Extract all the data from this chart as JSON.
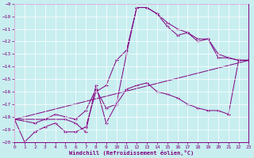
{
  "xlabel": "Windchill (Refroidissement éolien,°C)",
  "bg_color": "#c8eef0",
  "grid_color": "#ffffff",
  "line_color": "#800080",
  "xmin": 0,
  "xmax": 23,
  "ymin": -20,
  "ymax": -9,
  "curve1_x": [
    0,
    1,
    2,
    3,
    4,
    5,
    6,
    7,
    8,
    9,
    10,
    11,
    12,
    13,
    14,
    15,
    16,
    17,
    18,
    19,
    20,
    21,
    22,
    23
  ],
  "curve1_y": [
    -18.2,
    -20.0,
    -19.2,
    -18.8,
    -18.5,
    -19.2,
    -19.2,
    -18.8,
    -16.0,
    -15.5,
    -13.5,
    -12.7,
    -9.3,
    -9.3,
    -9.8,
    -10.5,
    -11.0,
    -11.3,
    -11.8,
    -11.8,
    -13.3,
    -13.3,
    -13.5,
    -13.5
  ],
  "curve2_x": [
    0,
    2,
    3,
    4,
    5,
    6,
    7,
    8,
    9,
    10,
    11,
    12,
    13,
    14,
    15,
    16,
    17,
    18,
    19,
    20,
    21,
    22,
    23
  ],
  "curve2_y": [
    -18.2,
    -18.5,
    -18.2,
    -17.8,
    -18.0,
    -18.2,
    -17.5,
    -15.8,
    -17.3,
    -17.0,
    -15.8,
    -15.5,
    -15.3,
    -16.0,
    -16.2,
    -16.5,
    -17.0,
    -17.3,
    -17.5,
    -17.5,
    -17.8,
    -13.5,
    -13.5
  ],
  "curve3_x": [
    0,
    23
  ],
  "curve3_y": [
    -18.2,
    -13.5
  ],
  "curve4_x": [
    0,
    5,
    6,
    7,
    8,
    9,
    10,
    11,
    12,
    13,
    14,
    15,
    16,
    17,
    18,
    19,
    20,
    21,
    22,
    23
  ],
  "curve4_y": [
    -18.2,
    -18.2,
    -18.5,
    -19.2,
    -15.5,
    -18.5,
    -17.0,
    -13.0,
    -9.3,
    -9.3,
    -9.8,
    -10.8,
    -11.5,
    -11.3,
    -12.0,
    -11.8,
    -13.0,
    -13.3,
    -13.5,
    -13.5
  ]
}
